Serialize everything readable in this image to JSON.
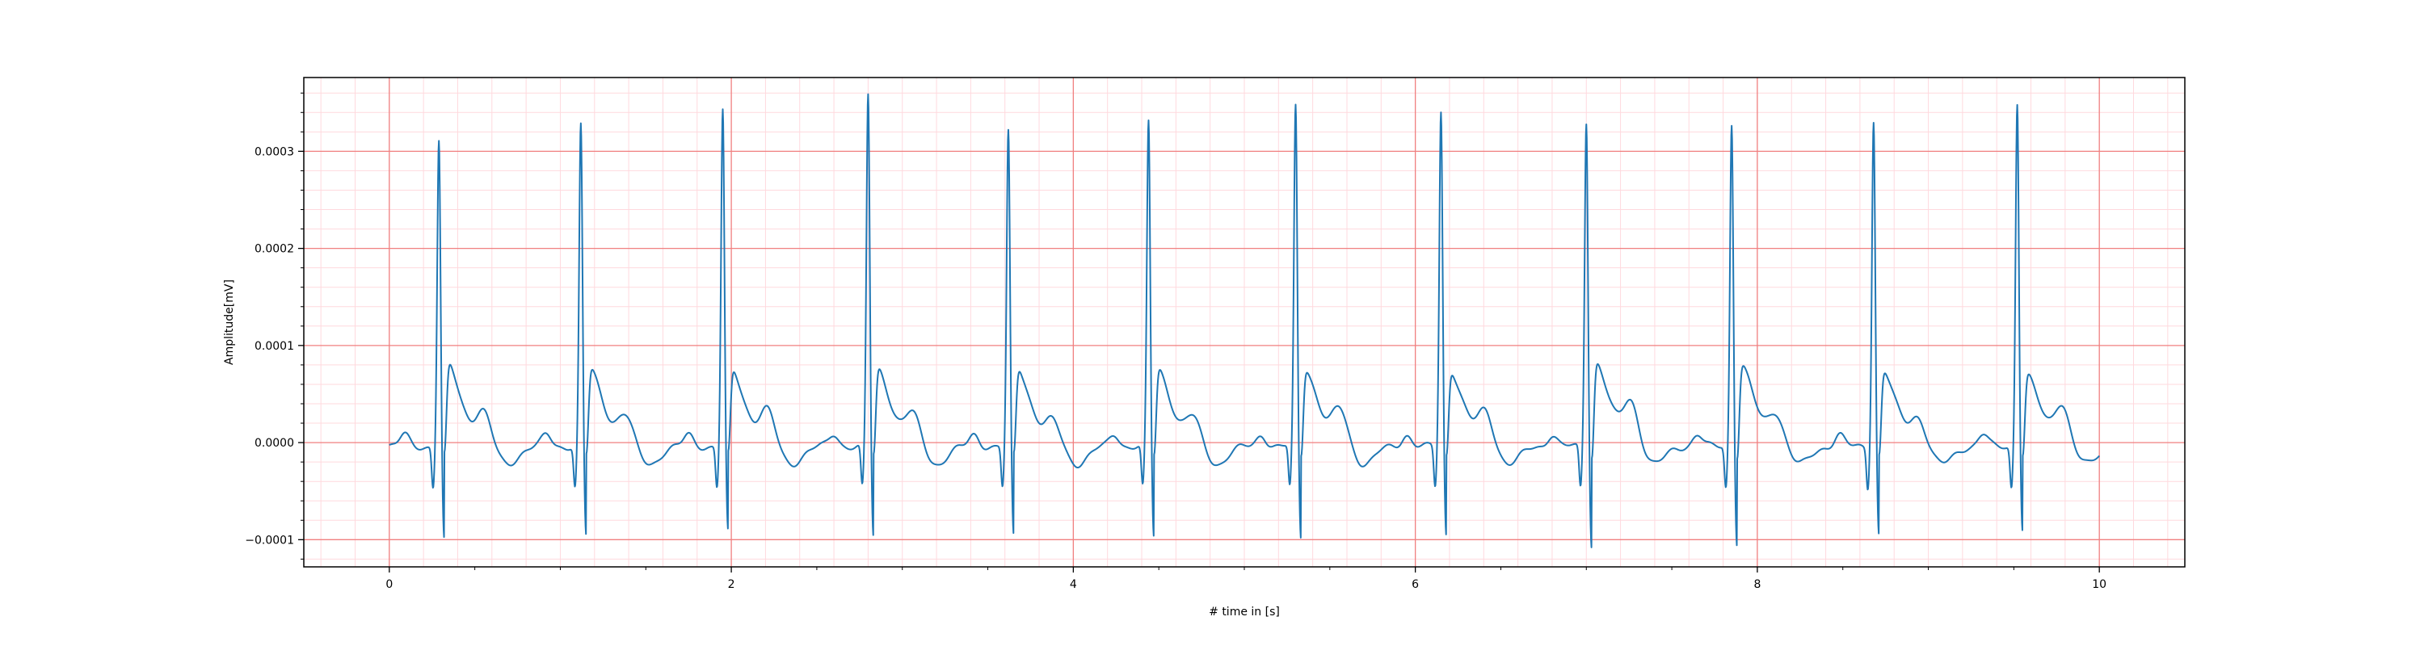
{
  "chart_data": {
    "type": "line",
    "title": "",
    "xlabel": "# time in [s]",
    "ylabel": "Amplitude[mV]",
    "xlim": [
      -0.5,
      10.5
    ],
    "ylim": [
      -0.000128,
      0.000376
    ],
    "x_ticks": [
      0,
      2,
      4,
      6,
      8,
      10
    ],
    "x_tick_labels": [
      "0",
      "2",
      "4",
      "6",
      "8",
      "10"
    ],
    "y_ticks": [
      -0.0001,
      0.0,
      0.0001,
      0.0002,
      0.0003
    ],
    "y_tick_labels": [
      "−0.0001",
      "0.0000",
      "0.0001",
      "0.0002",
      "0.0003"
    ],
    "grid": {
      "major": true,
      "minor": true,
      "major_x_step": 2,
      "major_y_step": 0.0001,
      "minor_x_step": 0.2,
      "minor_y_step": 2e-05
    },
    "x_range": [
      0,
      10
    ],
    "beat_times": [
      0.29,
      1.12,
      1.95,
      2.8,
      3.62,
      4.44,
      5.3,
      6.15,
      7.0,
      7.85,
      8.68,
      9.52
    ],
    "r_peak_amplitudes": [
      0.000308,
      0.000323,
      0.000339,
      0.000354,
      0.000316,
      0.000326,
      0.000342,
      0.000337,
      0.000328,
      0.000325,
      0.000329,
      0.000347
    ],
    "s_trough_amplitudes": [
      -0.0001,
      -9.5e-05,
      -9.2e-05,
      -9.6e-05,
      -9.6e-05,
      -9.6e-05,
      -9.7e-05,
      -9.4e-05,
      -0.000105,
      -0.000102,
      -9.3e-05,
      -8.8e-05
    ],
    "t_wave_amplitudes": [
      3.5e-05,
      3.1e-05,
      3.7e-05,
      3.3e-05,
      2.5e-05,
      2.9e-05,
      3.7e-05,
      3.5e-05,
      4.6e-05,
      3.3e-05,
      2.9e-05,
      4.3e-05
    ],
    "series": [
      {
        "color": "#1f77b4"
      }
    ],
    "colors": {
      "major_grid": "#f08080",
      "minor_grid": "#ffd9de",
      "line": "#1f77b4"
    }
  }
}
